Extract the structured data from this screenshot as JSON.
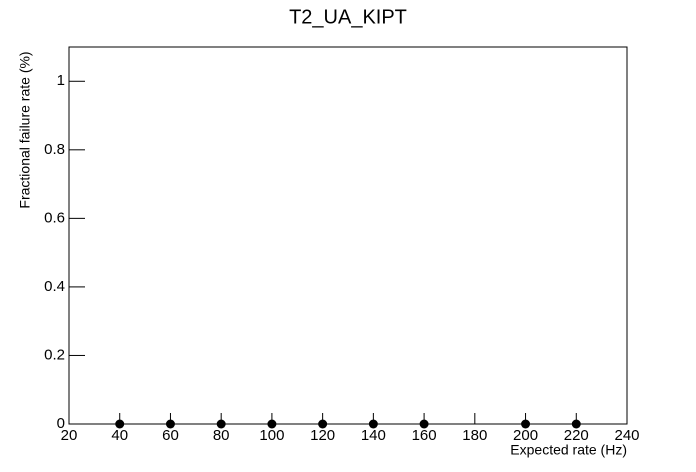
{
  "chart_data": {
    "type": "scatter",
    "title": "T2_UA_KIPT",
    "x_label": "Expected rate (Hz)",
    "y_label": "Fractional failure rate (%)",
    "x": [
      40,
      60,
      80,
      100,
      120,
      140,
      160,
      200,
      220
    ],
    "values": [
      0,
      0,
      0,
      0,
      0,
      0,
      0,
      0,
      0
    ],
    "color": "#000000",
    "xlim": [
      20,
      240
    ],
    "xticks": [
      20,
      40,
      60,
      80,
      100,
      120,
      140,
      160,
      180,
      200,
      220,
      240
    ],
    "ylim": [
      0,
      1.1
    ],
    "yticks": [
      0,
      0.2,
      0.4,
      0.6,
      0.8,
      1
    ]
  }
}
